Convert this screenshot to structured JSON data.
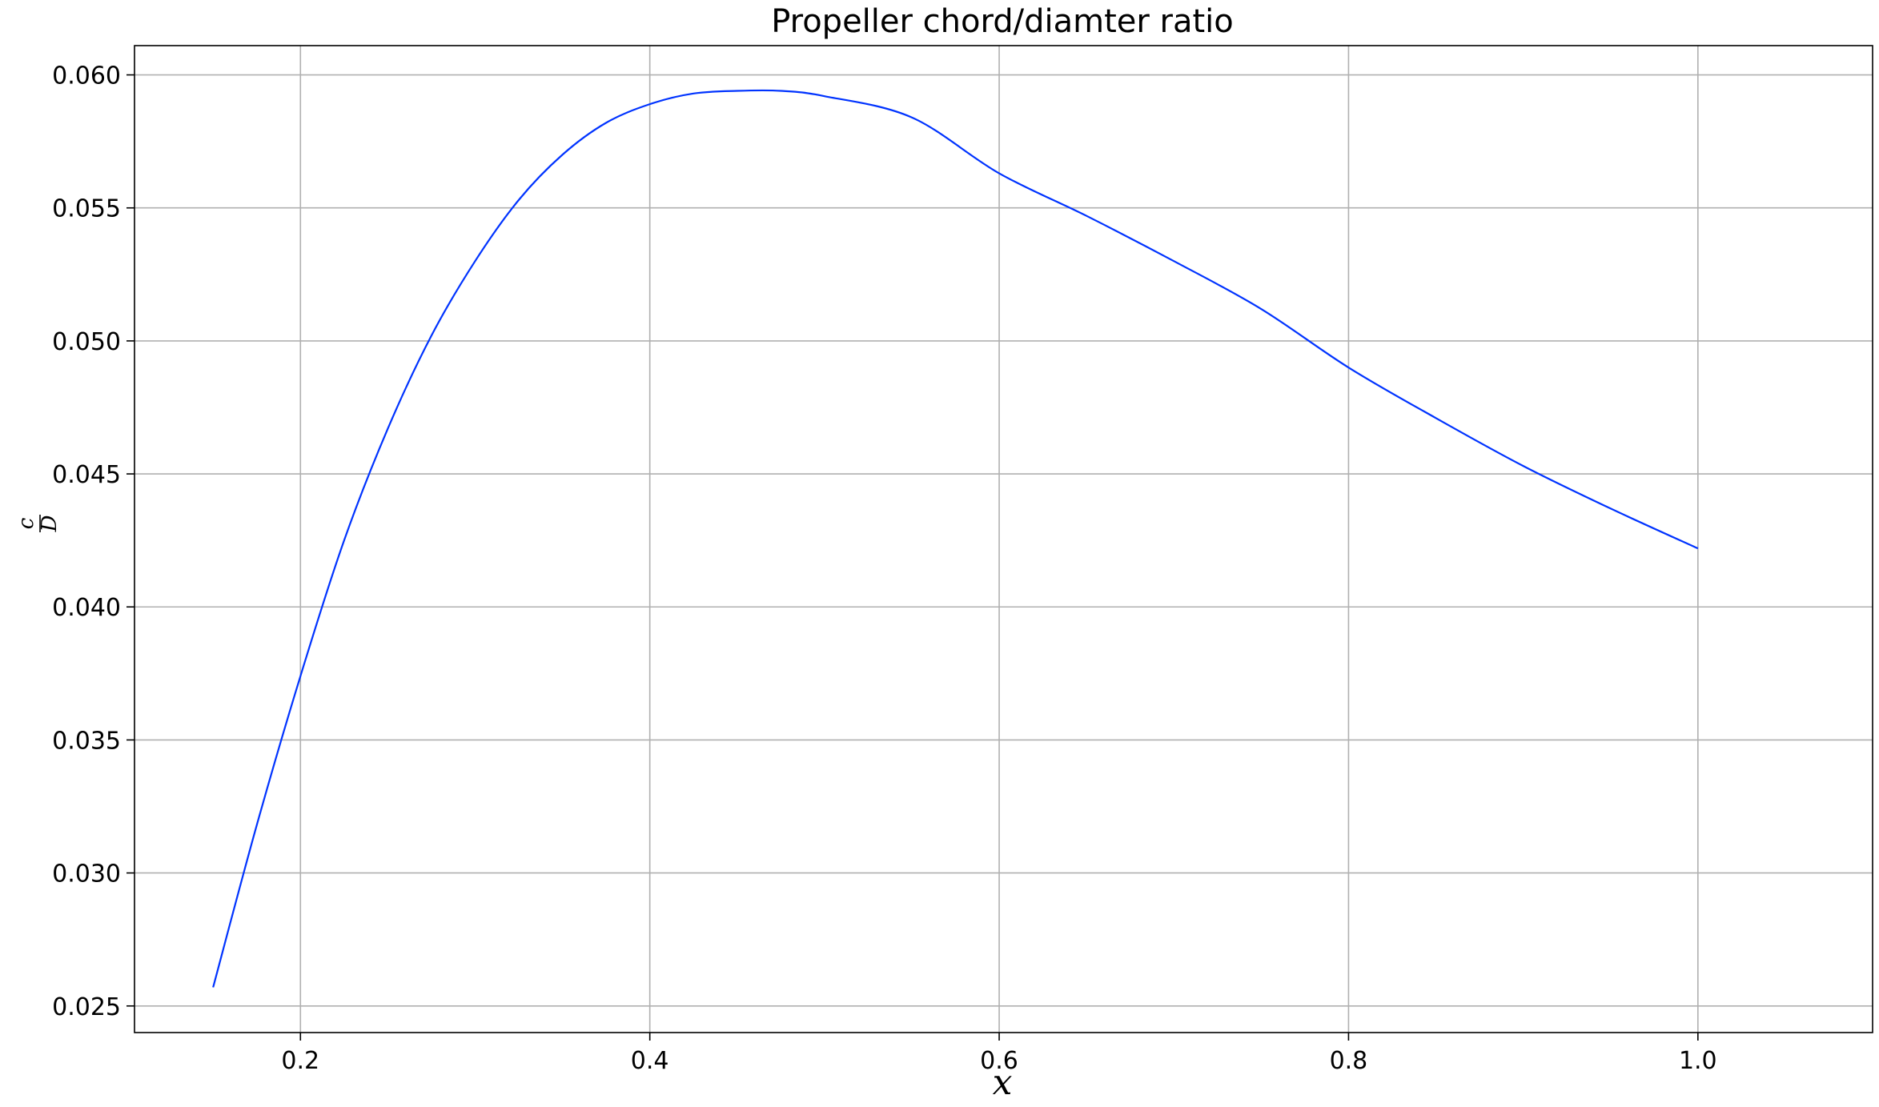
{
  "chart_data": {
    "type": "line",
    "title": "Propeller chord/diamter ratio",
    "xlabel": "x",
    "ylabel": {
      "numerator": "c",
      "denominator": "D"
    },
    "xlim": [
      0.105,
      1.1
    ],
    "ylim": [
      0.024,
      0.0611
    ],
    "xticks": [
      0.2,
      0.4,
      0.6,
      0.8,
      1.0
    ],
    "xtick_labels": [
      "0.2",
      "0.4",
      "0.6",
      "0.8",
      "1.0"
    ],
    "yticks": [
      0.025,
      0.03,
      0.035,
      0.04,
      0.045,
      0.05,
      0.055,
      0.06
    ],
    "ytick_labels": [
      "0.025",
      "0.030",
      "0.035",
      "0.040",
      "0.045",
      "0.050",
      "0.055",
      "0.060"
    ],
    "grid": true,
    "series": [
      {
        "color": "#0033ff",
        "x": [
          0.15,
          0.175,
          0.2,
          0.225,
          0.25,
          0.275,
          0.3,
          0.325,
          0.35,
          0.375,
          0.4,
          0.425,
          0.45,
          0.475,
          0.5,
          0.55,
          0.6,
          0.65,
          0.7,
          0.75,
          0.8,
          0.85,
          0.9,
          0.95,
          1.0
        ],
        "y": [
          0.0257,
          0.0318,
          0.0374,
          0.0425,
          0.0467,
          0.0502,
          0.053,
          0.0553,
          0.057,
          0.0582,
          0.0589,
          0.0593,
          0.0594,
          0.0594,
          0.0592,
          0.0584,
          0.0563,
          0.0547,
          0.053,
          0.0512,
          0.049,
          0.0471,
          0.0453,
          0.0437,
          0.0422
        ]
      }
    ]
  }
}
